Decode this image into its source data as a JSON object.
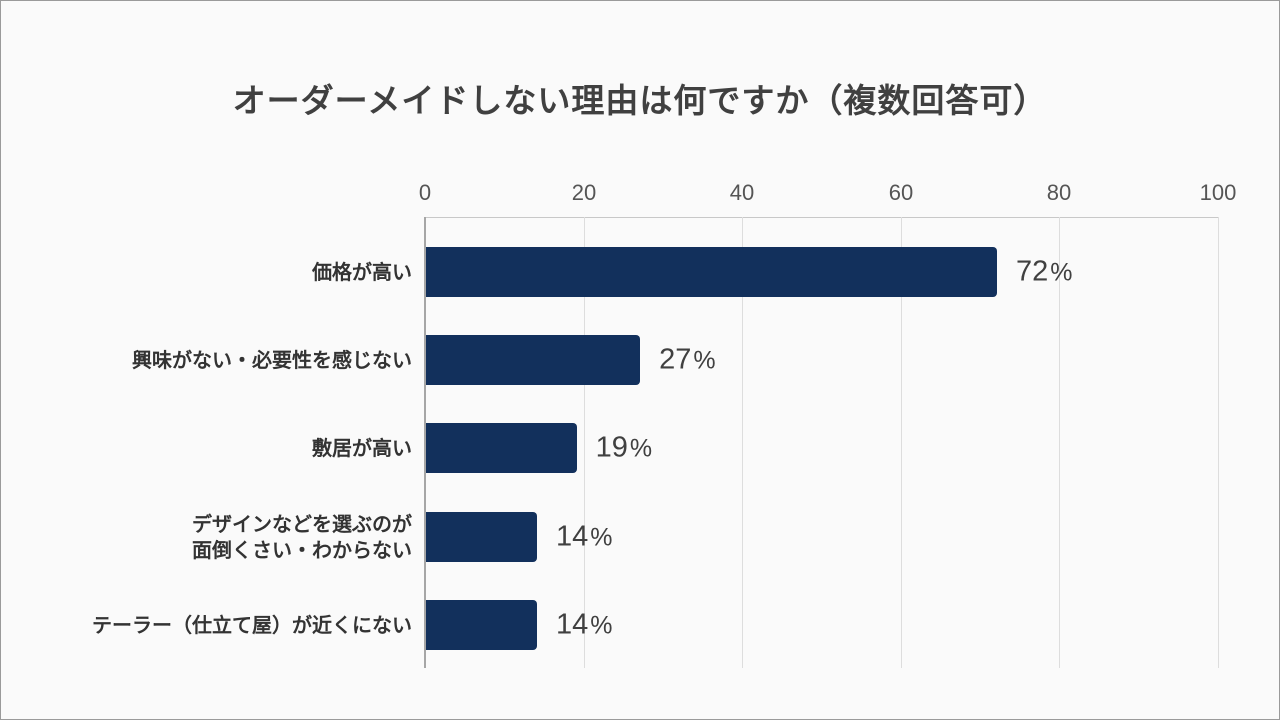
{
  "title": "オーダーメイドしない理由は何ですか（複数回答可）",
  "axis": {
    "ticks": [
      "0",
      "20",
      "40",
      "60",
      "80",
      "100"
    ],
    "xlim": [
      0,
      100
    ]
  },
  "bars": [
    {
      "label": "価格が高い",
      "value": 72,
      "display": "72",
      "unit": "%"
    },
    {
      "label": "興味がない・必要性を感じない",
      "value": 27,
      "display": "27",
      "unit": "%"
    },
    {
      "label": "敷居が高い",
      "value": 19,
      "display": "19",
      "unit": "%"
    },
    {
      "label": "デザインなどを選ぶのが\n面倒くさい・わからない",
      "value": 14,
      "display": "14",
      "unit": "%"
    },
    {
      "label": "テーラー（仕立て屋）が近くにない",
      "value": 14,
      "display": "14",
      "unit": "%"
    }
  ],
  "colors": {
    "bar": "#12305c",
    "text": "#404040",
    "background": "#fafafa"
  },
  "chart_data": {
    "type": "bar",
    "orientation": "horizontal",
    "title": "オーダーメイドしない理由は何ですか（複数回答可）",
    "categories": [
      "価格が高い",
      "興味がない・必要性を感じない",
      "敷居が高い",
      "デザインなどを選ぶのが面倒くさい・わからない",
      "テーラー（仕立て屋）が近くにない"
    ],
    "values": [
      72,
      27,
      19,
      14,
      14
    ],
    "unit": "%",
    "xlabel": "",
    "ylabel": "",
    "xlim": [
      0,
      100
    ],
    "xticks": [
      0,
      20,
      40,
      60,
      80,
      100
    ],
    "xaxis_position": "top",
    "grid": true,
    "legend": null,
    "data_labels": [
      "72%",
      "27%",
      "19%",
      "14%",
      "14%"
    ]
  }
}
